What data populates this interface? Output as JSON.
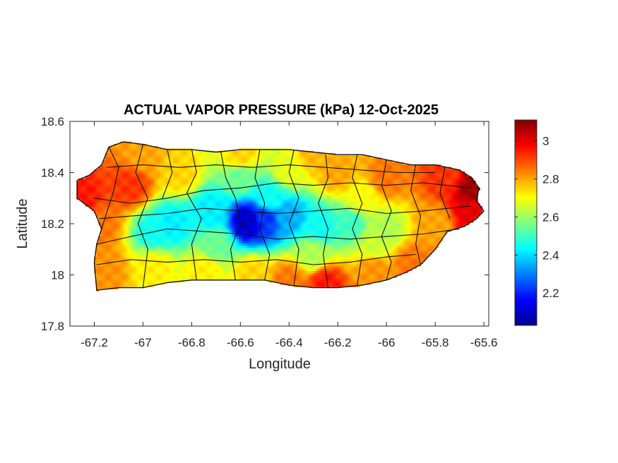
{
  "chart_data": {
    "type": "heatmap",
    "title": "ACTUAL VAPOR PRESSURE (kPa) 12-Oct-2025",
    "xlabel": "Longitude",
    "ylabel": "Latitude",
    "xlim": [
      -67.3,
      -65.58
    ],
    "ylim": [
      17.8,
      18.6
    ],
    "xticks": [
      -67.2,
      -67,
      -66.8,
      -66.6,
      -66.4,
      -66.2,
      -66,
      -65.8,
      -65.6
    ],
    "xtick_labels": [
      "-67.2",
      "-67",
      "-66.8",
      "-66.6",
      "-66.4",
      "-66.2",
      "-66",
      "-65.8",
      "-65.6"
    ],
    "yticks": [
      17.8,
      18,
      18.2,
      18.4,
      18.6
    ],
    "ytick_labels": [
      "17.8",
      "18",
      "18.2",
      "18.4",
      "18.6"
    ],
    "colorbar": {
      "colormap": "jet",
      "range": [
        2.03,
        3.11
      ],
      "ticks": [
        2.2,
        2.4,
        2.6,
        2.8,
        3
      ],
      "tick_labels": [
        "2.2",
        "2.4",
        "2.6",
        "2.8",
        "3"
      ]
    },
    "field_anchors": [
      {
        "lon": -66.57,
        "lat": 18.21,
        "value": 2.1
      },
      {
        "lon": -66.5,
        "lat": 18.22,
        "value": 2.22
      },
      {
        "lon": -66.72,
        "lat": 18.25,
        "value": 2.42
      },
      {
        "lon": -66.4,
        "lat": 18.23,
        "value": 2.35
      },
      {
        "lon": -66.88,
        "lat": 18.2,
        "value": 2.42
      },
      {
        "lon": -66.27,
        "lat": 18.19,
        "value": 2.45
      },
      {
        "lon": -66.15,
        "lat": 18.2,
        "value": 2.5
      },
      {
        "lon": -66.95,
        "lat": 18.17,
        "value": 2.45
      },
      {
        "lon": -66.6,
        "lat": 18.38,
        "value": 2.55
      },
      {
        "lon": -66.4,
        "lat": 18.41,
        "value": 2.68
      },
      {
        "lon": -66.85,
        "lat": 18.4,
        "value": 2.75
      },
      {
        "lon": -66.2,
        "lat": 18.4,
        "value": 2.8
      },
      {
        "lon": -66.0,
        "lat": 18.38,
        "value": 2.85
      },
      {
        "lon": -65.75,
        "lat": 18.38,
        "value": 2.92
      },
      {
        "lon": -65.65,
        "lat": 18.34,
        "value": 3.08
      },
      {
        "lon": -65.65,
        "lat": 18.25,
        "value": 3.0
      },
      {
        "lon": -65.8,
        "lat": 18.2,
        "value": 2.8
      },
      {
        "lon": -66.0,
        "lat": 18.18,
        "value": 2.62
      },
      {
        "lon": -65.9,
        "lat": 18.05,
        "value": 2.85
      },
      {
        "lon": -66.05,
        "lat": 18.02,
        "value": 2.82
      },
      {
        "lon": -66.25,
        "lat": 17.97,
        "value": 2.95
      },
      {
        "lon": -66.4,
        "lat": 17.98,
        "value": 2.85
      },
      {
        "lon": -66.55,
        "lat": 18.0,
        "value": 2.75
      },
      {
        "lon": -66.75,
        "lat": 18.02,
        "value": 2.72
      },
      {
        "lon": -66.95,
        "lat": 18.03,
        "value": 2.72
      },
      {
        "lon": -67.15,
        "lat": 18.02,
        "value": 2.82
      },
      {
        "lon": -67.18,
        "lat": 18.2,
        "value": 2.85
      },
      {
        "lon": -67.25,
        "lat": 18.3,
        "value": 2.95
      },
      {
        "lon": -67.05,
        "lat": 18.35,
        "value": 2.92
      },
      {
        "lon": -67.0,
        "lat": 18.47,
        "value": 2.8
      },
      {
        "lon": -66.6,
        "lat": 18.47,
        "value": 2.75
      },
      {
        "lon": -66.3,
        "lat": 18.47,
        "value": 2.78
      },
      {
        "lon": -66.7,
        "lat": 18.12,
        "value": 2.55
      },
      {
        "lon": -66.3,
        "lat": 18.08,
        "value": 2.62
      },
      {
        "lon": -66.05,
        "lat": 18.12,
        "value": 2.65
      },
      {
        "lon": -66.48,
        "lat": 18.3,
        "value": 2.45
      },
      {
        "lon": -66.1,
        "lat": 18.3,
        "value": 2.7
      }
    ]
  }
}
